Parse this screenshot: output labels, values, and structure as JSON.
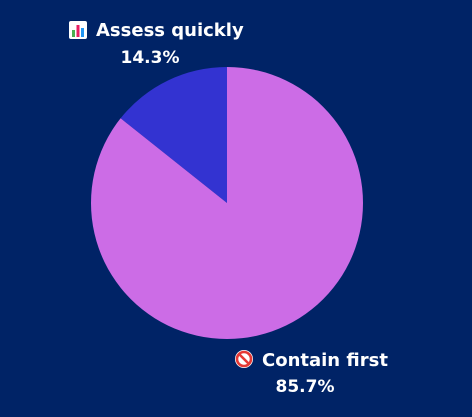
{
  "chart_data": {
    "type": "pie",
    "title": "",
    "slices": [
      {
        "label": "Assess quickly",
        "icon": "bar-chart-icon",
        "value": 14.3,
        "value_label": "14.3%",
        "color": "#3333d1"
      },
      {
        "label": "Contain first",
        "icon": "no-entry-icon",
        "value": 85.7,
        "value_label": "85.7%",
        "color": "#cc6ce6"
      }
    ],
    "start_angle_deg": 0,
    "direction": "counterclockwise",
    "legend": "none",
    "background_color": "#002366"
  }
}
